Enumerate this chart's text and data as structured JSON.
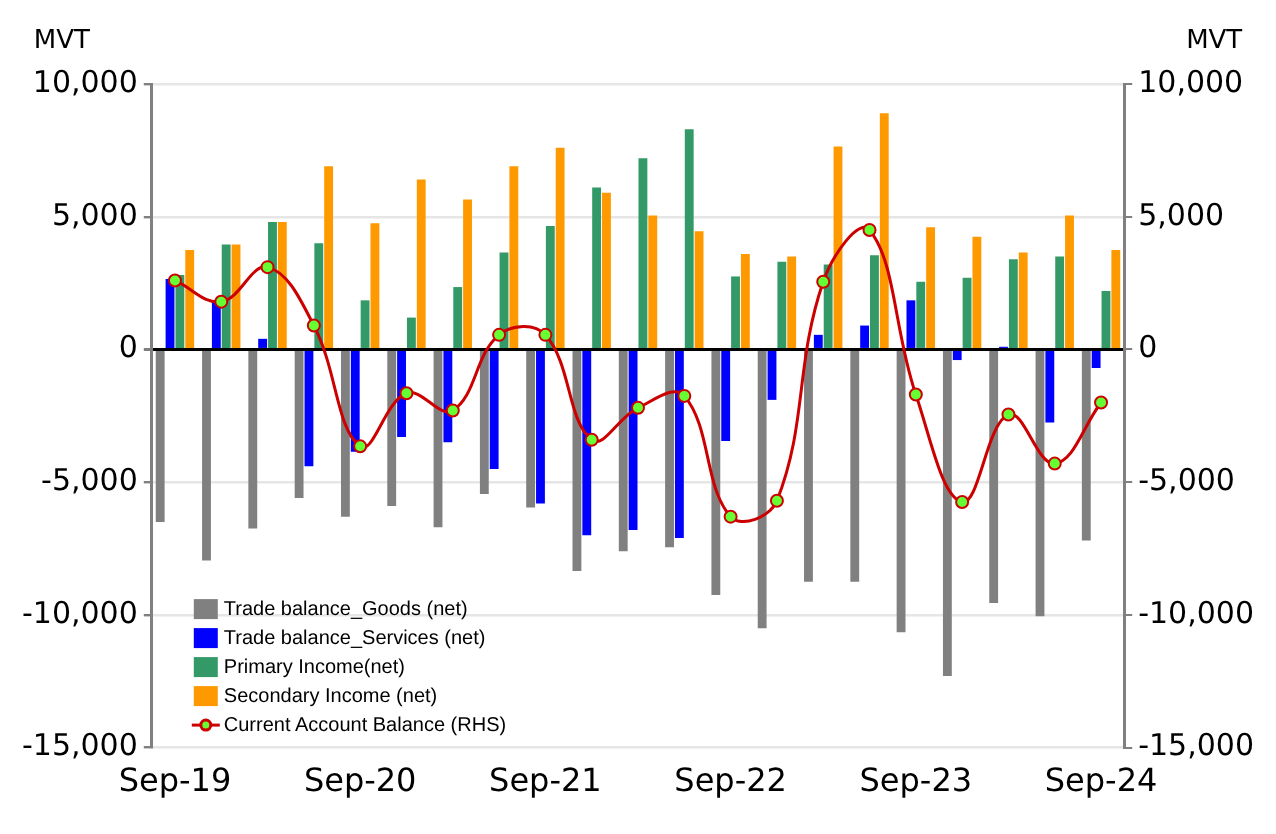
{
  "chart_data": {
    "type": "bar",
    "categories": [
      "Sep-19",
      null,
      null,
      null,
      "Sep-20",
      null,
      null,
      null,
      "Sep-21",
      null,
      null,
      null,
      "Sep-22",
      null,
      null,
      null,
      "Sep-23",
      null,
      null,
      null,
      "Sep-24"
    ],
    "series": [
      {
        "name": "Trade balance_Goods (net)",
        "color": "#808080",
        "values": [
          -6500,
          -7950,
          -6750,
          -5600,
          -6300,
          -5900,
          -6700,
          -5450,
          -5950,
          -8350,
          -7600,
          -7450,
          -9250,
          -10500,
          -8750,
          -8750,
          -10650,
          -12300,
          -9550,
          -10050,
          -7200
        ]
      },
      {
        "name": "Trade balance_Services (net)",
        "color": "#0000ff",
        "values": [
          2650,
          1850,
          400,
          -4400,
          -3850,
          -3300,
          -3500,
          -4500,
          -5800,
          -7000,
          -6800,
          -7100,
          -3450,
          -1900,
          550,
          900,
          1850,
          -400,
          100,
          -2750,
          -700
        ]
      },
      {
        "name": "Primary Income(net)",
        "color": "#339966",
        "values": [
          2800,
          3950,
          4800,
          4000,
          1850,
          1200,
          2350,
          3650,
          4650,
          6100,
          7200,
          8300,
          2750,
          3300,
          3200,
          3550,
          2550,
          2700,
          3400,
          3500,
          2200
        ]
      },
      {
        "name": "Secondary Income (net)",
        "color": "#ff9900",
        "values": [
          3750,
          3950,
          4800,
          6900,
          4750,
          6400,
          5650,
          6900,
          7600,
          5900,
          5050,
          4450,
          3600,
          3500,
          7650,
          8900,
          4600,
          4250,
          3650,
          5050,
          3750
        ]
      },
      {
        "name": "Current Account Balance (RHS)",
        "type": "line",
        "axis": "y2",
        "color": "#cc0000",
        "marker": "circle",
        "values": [
          2600,
          1800,
          3100,
          900,
          -3650,
          -1650,
          -2300,
          550,
          550,
          -3400,
          -2200,
          -1750,
          -6300,
          -5700,
          2550,
          4500,
          -1700,
          -5750,
          -2450,
          -4300,
          -2000
        ]
      }
    ],
    "ylabel": "MVT",
    "y2label": "MVT",
    "ylim": [
      -15000,
      10000
    ],
    "yticks": [
      {
        "value": -15000,
        "label": "-15,000"
      },
      {
        "value": -10000,
        "label": "-10,000"
      },
      {
        "value": -5000,
        "label": "-5,000"
      },
      0,
      {
        "value": 5000,
        "label": "5,000"
      },
      {
        "value": 10000,
        "label": "10,000"
      }
    ],
    "y2lim": [
      -15000,
      10000
    ],
    "y2ticks": [
      {
        "value": -15000,
        "label": "-15,000"
      },
      {
        "value": -10000,
        "label": "-10,000"
      },
      {
        "value": -5000,
        "label": "-5,000"
      },
      0,
      {
        "value": 5000,
        "label": "5,000"
      },
      {
        "value": 10000,
        "label": "10,000"
      }
    ],
    "grid": "y",
    "legend": "bottom left"
  }
}
